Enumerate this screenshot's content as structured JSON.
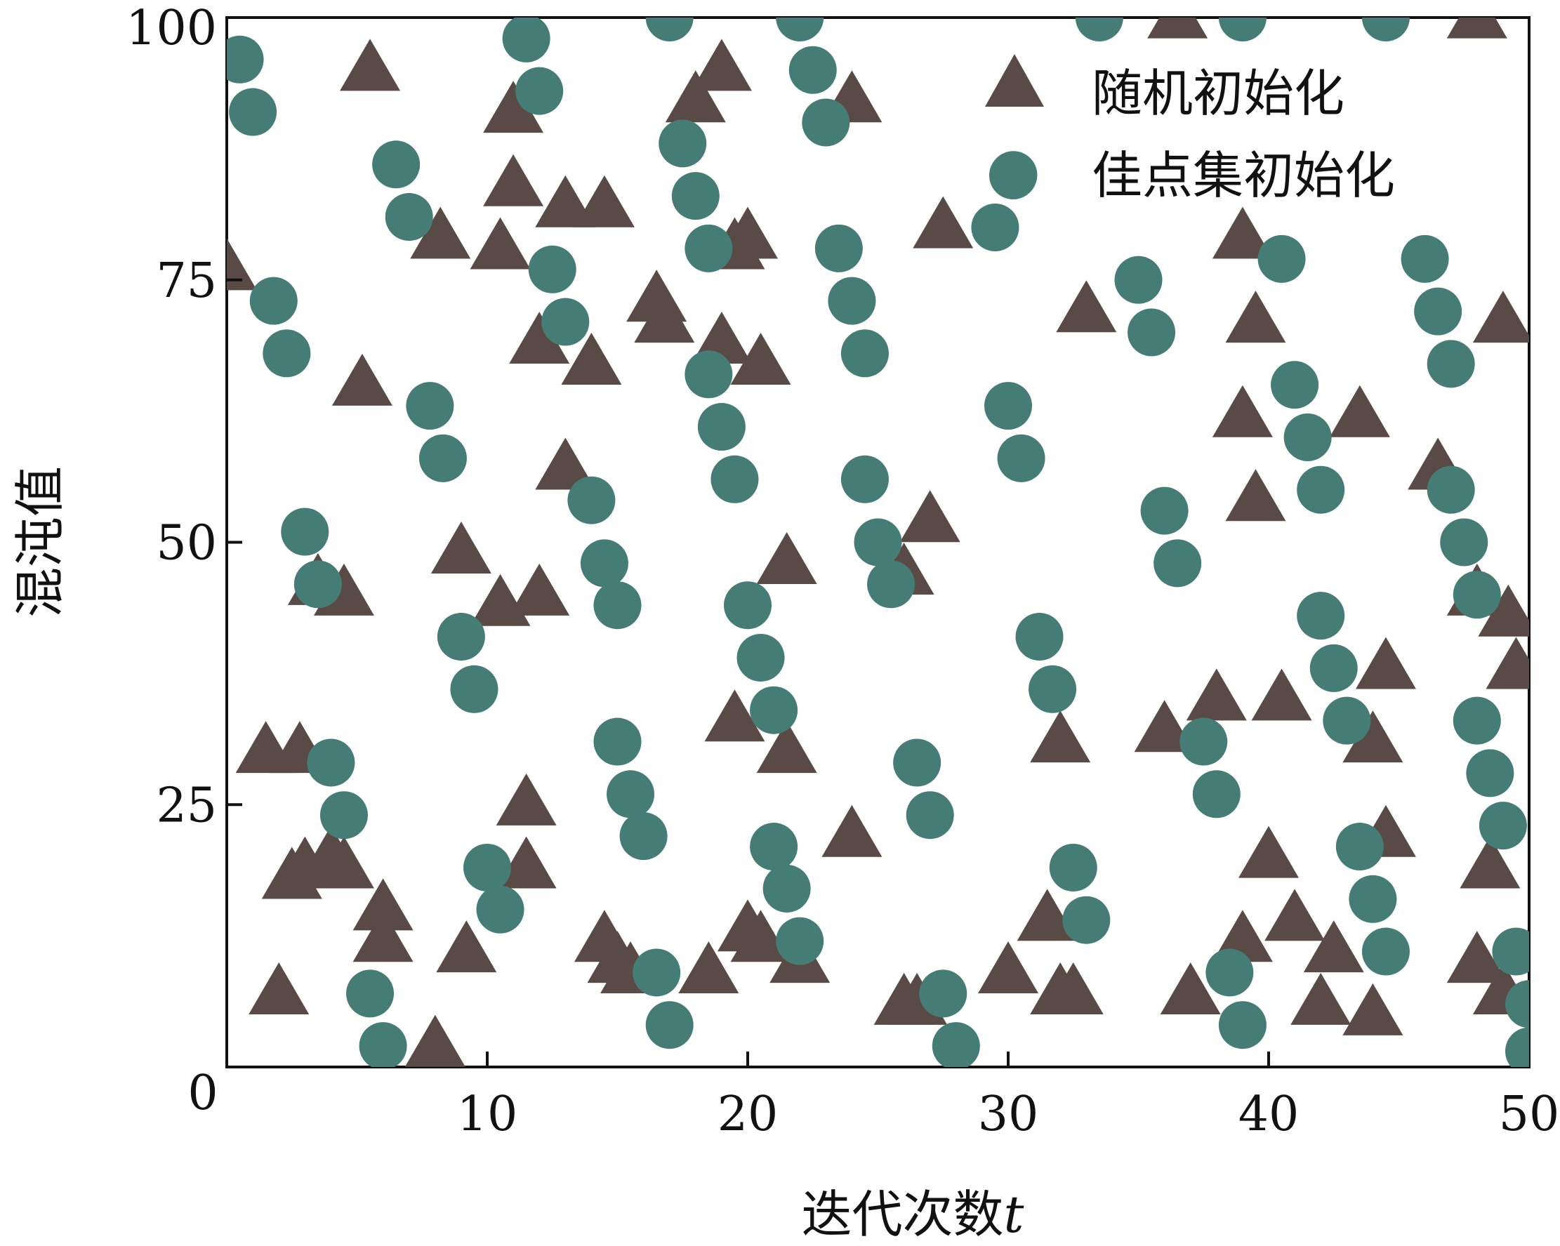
{
  "chart_data": {
    "type": "scatter",
    "xlabel": "迭代次数",
    "xlabel_var": "t",
    "ylabel": "混沌值",
    "xlim": [
      0,
      50
    ],
    "ylim": [
      0,
      100
    ],
    "x_ticks": [
      0,
      10,
      20,
      30,
      40,
      50
    ],
    "y_ticks": [
      25,
      50,
      75,
      100
    ],
    "grid": false,
    "legend_position": "top-right",
    "colors": {
      "random": "#5a4a46",
      "goodpoint": "#457c75"
    },
    "series": [
      {
        "name": "随机初始化",
        "marker": "triangle",
        "points": [
          [
            0,
            76
          ],
          [
            5.5,
            95
          ],
          [
            11,
            91
          ],
          [
            11,
            84
          ],
          [
            18,
            92
          ],
          [
            19,
            95
          ],
          [
            24,
            92
          ],
          [
            36.5,
            100
          ],
          [
            48,
            100
          ],
          [
            10.5,
            78
          ],
          [
            8.2,
            79
          ],
          [
            13,
            82
          ],
          [
            14.5,
            82
          ],
          [
            16.5,
            73
          ],
          [
            16.8,
            71
          ],
          [
            19.5,
            78
          ],
          [
            20,
            79
          ],
          [
            27.5,
            80
          ],
          [
            33,
            72
          ],
          [
            39,
            79
          ],
          [
            39.5,
            71
          ],
          [
            49,
            71
          ],
          [
            12,
            69
          ],
          [
            14,
            67
          ],
          [
            19,
            69
          ],
          [
            20.5,
            67
          ],
          [
            5.2,
            65
          ],
          [
            13,
            57
          ],
          [
            39,
            62
          ],
          [
            39.5,
            54
          ],
          [
            43.5,
            62
          ],
          [
            46.5,
            57
          ],
          [
            9,
            49
          ],
          [
            27,
            52
          ],
          [
            3.5,
            46
          ],
          [
            4.5,
            45
          ],
          [
            10.5,
            44
          ],
          [
            12,
            45
          ],
          [
            21.5,
            48
          ],
          [
            26,
            47
          ],
          [
            48,
            45
          ],
          [
            49.2,
            43
          ],
          [
            49.5,
            38
          ],
          [
            1.5,
            30
          ],
          [
            2.8,
            30
          ],
          [
            19.5,
            33
          ],
          [
            21.5,
            30
          ],
          [
            32,
            31
          ],
          [
            36,
            32
          ],
          [
            38,
            35
          ],
          [
            40.5,
            35
          ],
          [
            44,
            31
          ],
          [
            44.5,
            38
          ],
          [
            11.5,
            25
          ],
          [
            2.5,
            18
          ],
          [
            3,
            19
          ],
          [
            4,
            20
          ],
          [
            4.5,
            19
          ],
          [
            11.5,
            19
          ],
          [
            6,
            15
          ],
          [
            6,
            12
          ],
          [
            9.2,
            11
          ],
          [
            14.5,
            12
          ],
          [
            15,
            10
          ],
          [
            15.5,
            9
          ],
          [
            18.5,
            9
          ],
          [
            20,
            13
          ],
          [
            20.5,
            12
          ],
          [
            22,
            10
          ],
          [
            24,
            22
          ],
          [
            26,
            6
          ],
          [
            26.5,
            6
          ],
          [
            30,
            9
          ],
          [
            31.5,
            14
          ],
          [
            32,
            7
          ],
          [
            32.5,
            7
          ],
          [
            37,
            7
          ],
          [
            39,
            12
          ],
          [
            40,
            20
          ],
          [
            41,
            14
          ],
          [
            42,
            6
          ],
          [
            42.5,
            11
          ],
          [
            44,
            5
          ],
          [
            44.5,
            22
          ],
          [
            48,
            10
          ],
          [
            48.5,
            19
          ],
          [
            49,
            7
          ],
          [
            2,
            7
          ],
          [
            8,
            2
          ]
        ]
      },
      {
        "name": "佳点集初始化",
        "marker": "circle",
        "points": [
          [
            0.5,
            96
          ],
          [
            1,
            91
          ],
          [
            11.5,
            98
          ],
          [
            12,
            93
          ],
          [
            17,
            100
          ],
          [
            22,
            100
          ],
          [
            22.5,
            95
          ],
          [
            23,
            90
          ],
          [
            33.5,
            100
          ],
          [
            39,
            100
          ],
          [
            44.5,
            100
          ],
          [
            6.5,
            86
          ],
          [
            7,
            81
          ],
          [
            17.5,
            88
          ],
          [
            18,
            83
          ],
          [
            18.5,
            78
          ],
          [
            29.5,
            80
          ],
          [
            30.2,
            85
          ],
          [
            12.5,
            76
          ],
          [
            13,
            71
          ],
          [
            23.5,
            78
          ],
          [
            24,
            73
          ],
          [
            24.5,
            68
          ],
          [
            35,
            75
          ],
          [
            35.5,
            70
          ],
          [
            40.5,
            77
          ],
          [
            46,
            77
          ],
          [
            46.5,
            72
          ],
          [
            47,
            67
          ],
          [
            1.8,
            73
          ],
          [
            2.3,
            68
          ],
          [
            18.5,
            66
          ],
          [
            19,
            61
          ],
          [
            19.5,
            56
          ],
          [
            30,
            63
          ],
          [
            30.5,
            58
          ],
          [
            41,
            65
          ],
          [
            41.5,
            60
          ],
          [
            42,
            55
          ],
          [
            7.8,
            63
          ],
          [
            8.3,
            58
          ],
          [
            14,
            54
          ],
          [
            14.5,
            48
          ],
          [
            15,
            44
          ],
          [
            24.5,
            56
          ],
          [
            25,
            50
          ],
          [
            25.5,
            46
          ],
          [
            36,
            53
          ],
          [
            36.5,
            48
          ],
          [
            47,
            55
          ],
          [
            47.5,
            50
          ],
          [
            48,
            45
          ],
          [
            3,
            51
          ],
          [
            3.5,
            46
          ],
          [
            9,
            41
          ],
          [
            9.5,
            36
          ],
          [
            20,
            44
          ],
          [
            20.5,
            39
          ],
          [
            21,
            34
          ],
          [
            31.2,
            41
          ],
          [
            31.7,
            36
          ],
          [
            42,
            43
          ],
          [
            42.5,
            38
          ],
          [
            43,
            33
          ],
          [
            48,
            33
          ],
          [
            48.5,
            28
          ],
          [
            49,
            23
          ],
          [
            4,
            29
          ],
          [
            4.5,
            24
          ],
          [
            15,
            31
          ],
          [
            15.5,
            26
          ],
          [
            16,
            22
          ],
          [
            26.5,
            29
          ],
          [
            27,
            24
          ],
          [
            37.5,
            31
          ],
          [
            38,
            26
          ],
          [
            10,
            19
          ],
          [
            10.5,
            15
          ],
          [
            21,
            21
          ],
          [
            21.5,
            17
          ],
          [
            22,
            12
          ],
          [
            32.5,
            19
          ],
          [
            33,
            14
          ],
          [
            43.5,
            21
          ],
          [
            44,
            16
          ],
          [
            44.5,
            11
          ],
          [
            49.5,
            11
          ],
          [
            50,
            6
          ],
          [
            50,
            1.5
          ],
          [
            5.5,
            7
          ],
          [
            6,
            2
          ],
          [
            16.5,
            9
          ],
          [
            17,
            4
          ],
          [
            27.5,
            7
          ],
          [
            28,
            2
          ],
          [
            38.5,
            9
          ],
          [
            39,
            4
          ]
        ]
      }
    ]
  }
}
